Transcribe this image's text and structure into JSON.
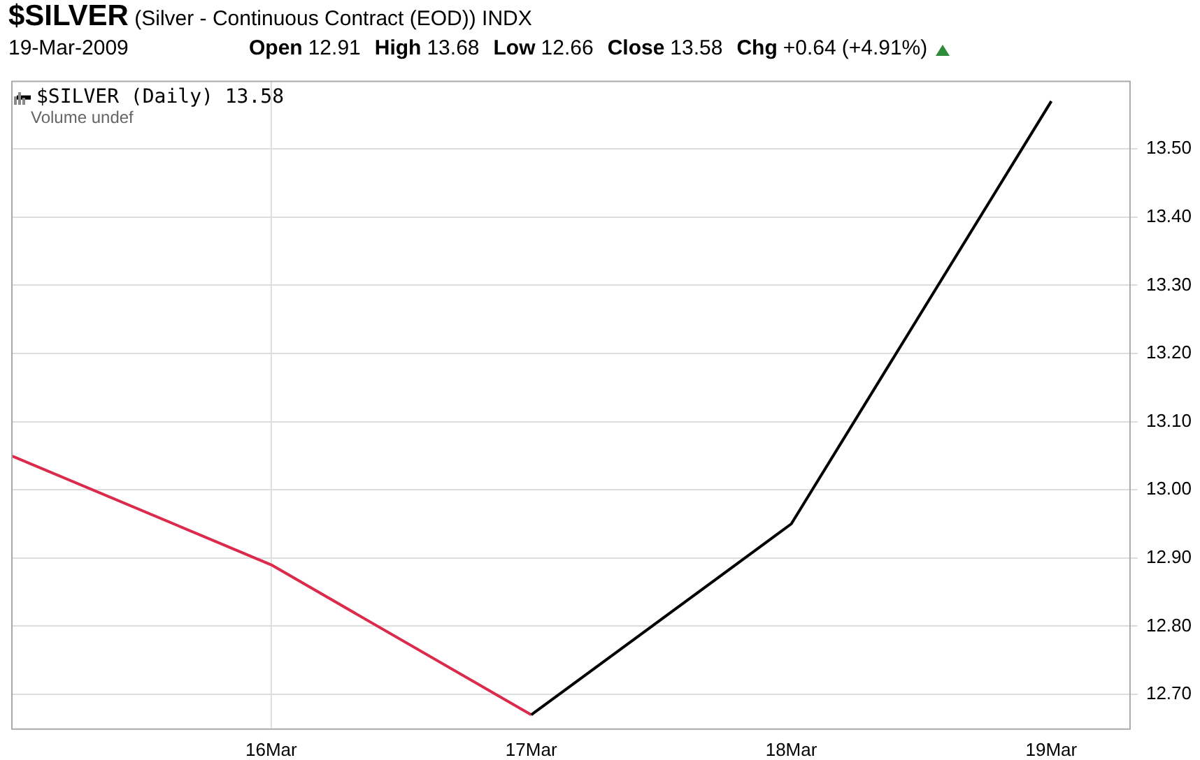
{
  "chart_data": {
    "type": "line",
    "title": "$SILVER (Silver - Continuous Contract (EOD)) INDX",
    "subtitle": "19-Mar-2009 Open 12.91 High 13.68 Low 12.66 Close 13.58 Chg +0.64 (+4.91%)",
    "categories": [
      null,
      "16Mar",
      "17Mar",
      "18Mar",
      "19Mar"
    ],
    "series": [
      {
        "name": "$SILVER (Daily) 13.58",
        "color": "#000000",
        "values": [
          null,
          null,
          12.67,
          12.95,
          13.57
        ]
      },
      {
        "color": "#dc2a4c",
        "values": [
          13.05,
          12.89,
          12.67,
          null,
          null
        ]
      }
    ],
    "annotations": [
      "Volume undef"
    ],
    "ylim": [
      12.65,
      13.6
    ],
    "yticks": [
      {
        "value": 12.7,
        "label": "12.70"
      },
      {
        "value": 12.8,
        "label": "12.80"
      },
      {
        "value": 12.9,
        "label": "12.90"
      },
      {
        "value": 13.0,
        "label": "13.00"
      },
      {
        "value": 13.1,
        "label": "13.10"
      },
      {
        "value": 13.2,
        "label": "13.20"
      },
      {
        "value": 13.3,
        "label": "13.30"
      },
      {
        "value": 13.4,
        "label": "13.40"
      },
      {
        "value": 13.5,
        "label": "13.50"
      }
    ],
    "ref_lines": [
      {
        "axis": "x",
        "value": "16Mar",
        "color": "#dddddd"
      }
    ],
    "grid": "y",
    "legend": "top left",
    "marker": "none",
    "line_style": "solid"
  }
}
